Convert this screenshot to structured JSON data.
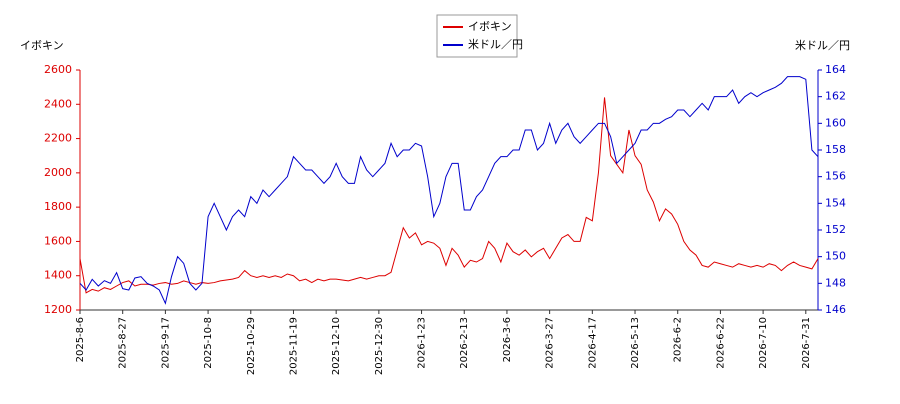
{
  "chart_data": {
    "type": "line",
    "legend_position": "top",
    "y_label": "イボキン",
    "y2_label": "米ドル／円",
    "categories": [
      "2025-8-6",
      null,
      null,
      null,
      null,
      null,
      null,
      "2025-8-27",
      null,
      null,
      null,
      null,
      null,
      null,
      "2025-9-17",
      null,
      null,
      null,
      null,
      null,
      null,
      "2025-10-8",
      null,
      null,
      null,
      null,
      null,
      null,
      "2025-10-29",
      null,
      null,
      null,
      null,
      null,
      null,
      "2025-11-19",
      null,
      null,
      null,
      null,
      null,
      null,
      "2025-12-10",
      null,
      null,
      null,
      null,
      null,
      null,
      "2025-12-30",
      null,
      null,
      null,
      null,
      null,
      null,
      "2026-1-23",
      null,
      null,
      null,
      null,
      null,
      null,
      "2026-2-13",
      null,
      null,
      null,
      null,
      null,
      null,
      "2026-3-6",
      null,
      null,
      null,
      null,
      null,
      null,
      "2026-3-27",
      null,
      null,
      null,
      null,
      null,
      null,
      "2026-4-17",
      null,
      null,
      null,
      null,
      null,
      null,
      "2026-5-13",
      null,
      null,
      null,
      null,
      null,
      null,
      "2026-6-2",
      null,
      null,
      null,
      null,
      null,
      null,
      "2026-6-22",
      null,
      null,
      null,
      null,
      null,
      null,
      "2026-7-10",
      null,
      null,
      null,
      null,
      null,
      null,
      "2026-7-31",
      null,
      null
    ],
    "series": [
      {
        "name": "イボキン",
        "color": "#dd0000",
        "axis": "y",
        "values": [
          1500,
          1300,
          1320,
          1310,
          1330,
          1320,
          1340,
          1360,
          1370,
          1340,
          1350,
          1350,
          1345,
          1355,
          1360,
          1350,
          1355,
          1370,
          1360,
          1350,
          1360,
          1355,
          1360,
          1370,
          1375,
          1380,
          1390,
          1430,
          1400,
          1390,
          1400,
          1390,
          1400,
          1390,
          1410,
          1400,
          1370,
          1380,
          1360,
          1380,
          1370,
          1380,
          1380,
          1375,
          1370,
          1380,
          1390,
          1380,
          1390,
          1400,
          1400,
          1420,
          1550,
          1680,
          1620,
          1650,
          1580,
          1600,
          1590,
          1560,
          1460,
          1560,
          1520,
          1450,
          1490,
          1480,
          1500,
          1600,
          1560,
          1480,
          1590,
          1540,
          1520,
          1550,
          1510,
          1540,
          1560,
          1500,
          1560,
          1620,
          1640,
          1600,
          1600,
          1740,
          1720,
          2000,
          2440,
          2100,
          2050,
          2000,
          2250,
          2100,
          2050,
          1900,
          1830,
          1720,
          1790,
          1760,
          1700,
          1600,
          1550,
          1520,
          1460,
          1450,
          1480,
          1470,
          1460,
          1450,
          1470,
          1460,
          1450,
          1460,
          1450,
          1470,
          1460,
          1430,
          1460,
          1480,
          1460,
          1450,
          1440,
          1500
        ]
      },
      {
        "name": "米ドル／円",
        "color": "#0000cc",
        "axis": "y2",
        "values": [
          148,
          147.5,
          148.3,
          147.8,
          148.2,
          148,
          148.8,
          147.6,
          147.5,
          148.4,
          148.5,
          148,
          147.8,
          147.5,
          146.5,
          148.5,
          150,
          149.5,
          148,
          147.5,
          148,
          153,
          154,
          153,
          152,
          153,
          153.5,
          153,
          154.5,
          154,
          155,
          154.5,
          155,
          155.5,
          156,
          157.5,
          157,
          156.5,
          156.5,
          156,
          155.5,
          156,
          157,
          156,
          155.5,
          155.5,
          157.5,
          156.5,
          156,
          156.5,
          157,
          158.5,
          157.5,
          158,
          158,
          158.5,
          158.3,
          156,
          153,
          154,
          156,
          157,
          157,
          153.5,
          153.5,
          154.5,
          155,
          156,
          157,
          157.5,
          157.5,
          158,
          158,
          159.5,
          159.5,
          158,
          158.5,
          160,
          158.5,
          159.5,
          160,
          159,
          158.5,
          159,
          159.5,
          160,
          160,
          159,
          157,
          157.5,
          158,
          158.5,
          159.5,
          159.5,
          160,
          160,
          160.3,
          160.5,
          161,
          161,
          160.5,
          161,
          161.5,
          161,
          162,
          162,
          162,
          162.5,
          161.5,
          162,
          162.3,
          162,
          162.3,
          162.5,
          162.7,
          163,
          163.5,
          163.5,
          163.5,
          163.3,
          158,
          157.5
        ]
      }
    ],
    "ylim": [
      1200,
      2600
    ],
    "yticks": [
      1200,
      1400,
      1600,
      1800,
      2000,
      2200,
      2400,
      2600
    ],
    "y2lim": [
      146,
      164
    ],
    "y2ticks": [
      146,
      148,
      150,
      152,
      154,
      156,
      158,
      160,
      162,
      164
    ],
    "grid": false
  }
}
